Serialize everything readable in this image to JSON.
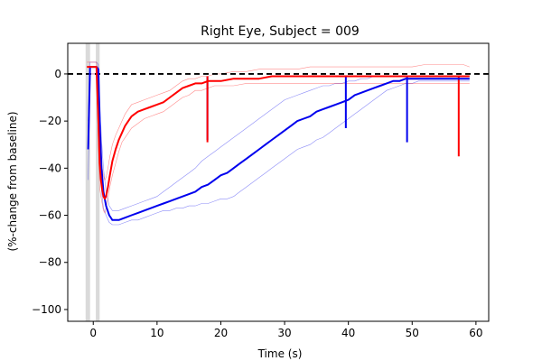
{
  "chart_data": {
    "type": "line",
    "title": "Right Eye, Subject = 009",
    "xlabel": "Time (s)",
    "ylabel_lines": [
      "(%-change from baseline)"
    ],
    "xlim": [
      -4,
      62
    ],
    "ylim": [
      -105,
      13
    ],
    "xticks": [
      0,
      10,
      20,
      30,
      40,
      50,
      60
    ],
    "yticks": [
      0,
      -20,
      -40,
      -60,
      -80,
      -100
    ],
    "reference_line": {
      "y": 0,
      "style": "dashed",
      "color": "#000000"
    },
    "shaded_regions": [
      {
        "x0": -1.2,
        "x1": -0.5,
        "color": "#bbbbbb"
      },
      {
        "x0": 0.4,
        "x1": 1.0,
        "color": "#bbbbbb"
      }
    ],
    "series": [
      {
        "color": "#0000ee",
        "x": [
          -0.8,
          -0.5,
          0,
          0.5,
          0.8,
          1.0,
          1.3,
          1.6,
          2.0,
          2.5,
          3,
          4,
          5,
          6,
          7,
          8,
          9,
          10,
          11,
          12,
          13,
          14,
          15,
          16,
          17,
          18,
          19,
          20,
          21,
          22,
          23,
          24,
          25,
          26,
          27,
          28,
          29,
          30,
          31,
          32,
          33,
          34,
          35,
          36,
          37,
          38,
          39,
          40,
          41,
          42,
          43,
          44,
          45,
          46,
          47,
          48,
          49,
          50,
          51,
          52,
          53,
          54,
          55,
          56,
          57,
          58,
          59
        ],
        "y": [
          -32,
          3,
          3,
          3,
          2,
          -20,
          -40,
          -50,
          -56,
          -60,
          -62,
          -62,
          -61,
          -60,
          -59,
          -58,
          -57,
          -56,
          -55,
          -54,
          -53,
          -52,
          -51,
          -50,
          -48,
          -47,
          -45,
          -43,
          -42,
          -40,
          -38,
          -36,
          -34,
          -32,
          -30,
          -28,
          -26,
          -24,
          -22,
          -20,
          -19,
          -18,
          -16,
          -15,
          -14,
          -13,
          -12,
          -11,
          -9,
          -8,
          -7,
          -6,
          -5,
          -4,
          -3,
          -3,
          -2,
          -2,
          -2,
          -2,
          -2,
          -2,
          -2,
          -2,
          -2,
          -2,
          -2
        ],
        "upper": [
          -20,
          5,
          5,
          5,
          4,
          -10,
          -28,
          -40,
          -50,
          -56,
          -58,
          -58,
          -57,
          -56,
          -55,
          -54,
          -53,
          -52,
          -50,
          -48,
          -46,
          -44,
          -42,
          -40,
          -37,
          -35,
          -33,
          -31,
          -29,
          -27,
          -25,
          -23,
          -21,
          -19,
          -17,
          -15,
          -13,
          -11,
          -10,
          -9,
          -8,
          -7,
          -6,
          -5,
          -5,
          -4,
          -4,
          -3,
          -3,
          -2,
          -2,
          -1,
          -1,
          -1,
          -1,
          -1,
          -1,
          -1,
          -1,
          -1,
          -1,
          -1,
          -1,
          -1,
          -1,
          -1,
          -1
        ],
        "lower": [
          -45,
          0,
          0,
          0,
          -2,
          -30,
          -50,
          -57,
          -60,
          -63,
          -64,
          -64,
          -63,
          -62,
          -62,
          -61,
          -60,
          -59,
          -58,
          -58,
          -57,
          -57,
          -56,
          -56,
          -55,
          -55,
          -54,
          -53,
          -53,
          -52,
          -50,
          -48,
          -46,
          -44,
          -42,
          -40,
          -38,
          -36,
          -34,
          -32,
          -31,
          -30,
          -28,
          -27,
          -25,
          -23,
          -21,
          -19,
          -17,
          -15,
          -13,
          -11,
          -9,
          -7,
          -6,
          -5,
          -4,
          -4,
          -3,
          -3,
          -3,
          -3,
          -3,
          -3,
          -3,
          -3,
          -3
        ],
        "spikes": [
          {
            "x": 17.9,
            "y": -28
          },
          {
            "x": 39.6,
            "y": -23
          },
          {
            "x": 49.2,
            "y": -29
          }
        ]
      },
      {
        "color": "#ff0000",
        "x": [
          -1.0,
          -0.5,
          0,
          0.5,
          0.8,
          1.0,
          1.2,
          1.4,
          1.6,
          1.8,
          2.0,
          2.3,
          2.6,
          3,
          3.5,
          4,
          4.5,
          5,
          5.5,
          6,
          7,
          8,
          9,
          10,
          11,
          12,
          13,
          14,
          15,
          16,
          17,
          18,
          19,
          20,
          22,
          24,
          26,
          28,
          30,
          32,
          34,
          36,
          38,
          40,
          42,
          44,
          46,
          48,
          50,
          52,
          54,
          56,
          57,
          58,
          59
        ],
        "y": [
          3,
          3,
          3,
          3,
          -20,
          -38,
          -45,
          -49,
          -52,
          -53,
          -52,
          -48,
          -43,
          -37,
          -32,
          -28,
          -25,
          -22,
          -20,
          -18,
          -16,
          -15,
          -14,
          -13,
          -12,
          -10,
          -8,
          -6,
          -5,
          -4,
          -4,
          -3,
          -3,
          -3,
          -2,
          -2,
          -2,
          -1,
          -1,
          -1,
          -1,
          -1,
          -1,
          -1,
          -1,
          -1,
          -1,
          -1,
          -1,
          -1,
          -1,
          -1,
          -1,
          -1,
          -1
        ],
        "upper": [
          5,
          5,
          5,
          5,
          -10,
          -25,
          -35,
          -40,
          -43,
          -45,
          -44,
          -40,
          -35,
          -30,
          -26,
          -23,
          -20,
          -17,
          -15,
          -13,
          -12,
          -11,
          -10,
          -9,
          -8,
          -7,
          -5,
          -3,
          -2,
          -2,
          -1,
          -1,
          0,
          0,
          1,
          1,
          2,
          2,
          2,
          2,
          3,
          3,
          3,
          3,
          3,
          3,
          3,
          3,
          3,
          4,
          4,
          4,
          4,
          4,
          3
        ],
        "lower": [
          0,
          0,
          0,
          0,
          -30,
          -48,
          -52,
          -55,
          -58,
          -59,
          -57,
          -53,
          -48,
          -43,
          -38,
          -33,
          -29,
          -27,
          -25,
          -23,
          -21,
          -19,
          -18,
          -17,
          -16,
          -14,
          -12,
          -10,
          -9,
          -7,
          -7,
          -6,
          -5,
          -5,
          -5,
          -4,
          -4,
          -4,
          -4,
          -4,
          -4,
          -4,
          -4,
          -4,
          -4,
          -4,
          -4,
          -4,
          -4,
          -4,
          -4,
          -4,
          -4,
          -4,
          -4
        ],
        "spikes": [
          {
            "x": 17.9,
            "y": -29
          },
          {
            "x": 57.3,
            "y": -35
          }
        ]
      }
    ]
  }
}
